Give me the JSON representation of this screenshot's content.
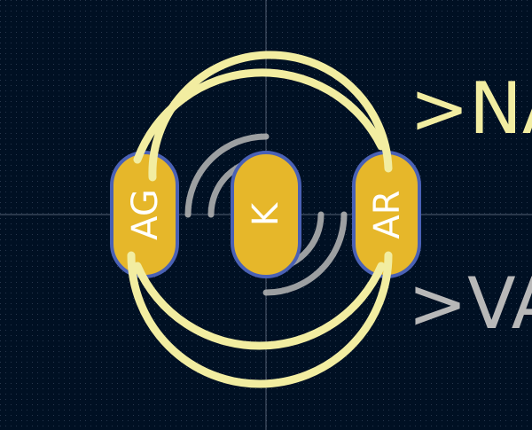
{
  "editor": {
    "background_color": "#001023",
    "grid_color": "#2a3b52",
    "crosshair_color": "#9aa3b5"
  },
  "footprint": {
    "silkscreen_color": "#f2eda1",
    "fab_color": "#b8b8b8",
    "pad_color": "#e6b72a",
    "pad_outline_color": "#4a61b5",
    "pad_text_color": "#ffffff",
    "reference": ">NA",
    "value": ">VA",
    "pads": [
      {
        "name": "AG"
      },
      {
        "name": "K"
      },
      {
        "name": "AR"
      }
    ]
  }
}
